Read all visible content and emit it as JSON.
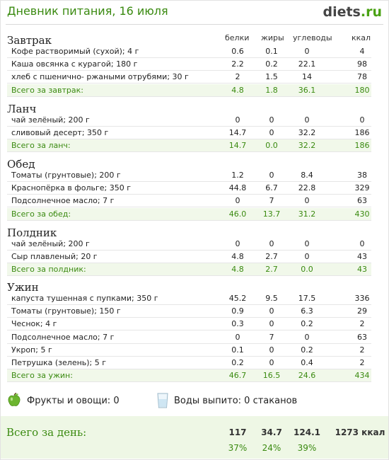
{
  "header": {
    "title": "Дневник питания, 16 июля",
    "logo_main": "diets",
    "logo_suffix": ".ru"
  },
  "columns": {
    "proteins": "белки",
    "fats": "жиры",
    "carbs": "углеводы",
    "kcal": "ккал"
  },
  "meals": [
    {
      "title": "Завтрак",
      "rows": [
        [
          "Кофе растворимый (сухой); 4 г",
          "0.6",
          "0.1",
          "0",
          "4"
        ],
        [
          "Каша овсянка с курагой; 180 г",
          "2.2",
          "0.2",
          "22.1",
          "98"
        ],
        [
          "хлеб с пшенично- ржаными отрубями; 30 г",
          "2",
          "1.5",
          "14",
          "78"
        ]
      ],
      "total": [
        "Всего за завтрак:",
        "4.8",
        "1.8",
        "36.1",
        "180"
      ]
    },
    {
      "title": "Ланч",
      "rows": [
        [
          "чай зелёный; 200 г",
          "0",
          "0",
          "0",
          "0"
        ],
        [
          "сливовый десерт; 350 г",
          "14.7",
          "0",
          "32.2",
          "186"
        ]
      ],
      "total": [
        "Всего за ланч:",
        "14.7",
        "0.0",
        "32.2",
        "186"
      ]
    },
    {
      "title": "Обед",
      "rows": [
        [
          "Томаты (грунтовые); 200 г",
          "1.2",
          "0",
          "8.4",
          "38"
        ],
        [
          "Краснопёрка в фольге; 350 г",
          "44.8",
          "6.7",
          "22.8",
          "329"
        ],
        [
          "Подсолнечное масло; 7 г",
          "0",
          "7",
          "0",
          "63"
        ]
      ],
      "total": [
        "Всего за обед:",
        "46.0",
        "13.7",
        "31.2",
        "430"
      ]
    },
    {
      "title": "Полдник",
      "rows": [
        [
          "чай зелёный; 200 г",
          "0",
          "0",
          "0",
          "0"
        ],
        [
          "Сыр плавленый; 20 г",
          "4.8",
          "2.7",
          "0",
          "43"
        ]
      ],
      "total": [
        "Всего за полдник:",
        "4.8",
        "2.7",
        "0.0",
        "43"
      ]
    },
    {
      "title": "Ужин",
      "rows": [
        [
          "капуста тушенная с пупками; 350 г",
          "45.2",
          "9.5",
          "17.5",
          "336"
        ],
        [
          "Томаты (грунтовые); 150 г",
          "0.9",
          "0",
          "6.3",
          "29"
        ],
        [
          "Чеснок; 4 г",
          "0.3",
          "0",
          "0.2",
          "2"
        ],
        [
          "Подсолнечное масло; 7 г",
          "0",
          "7",
          "0",
          "63"
        ],
        [
          "Укроп; 5 г",
          "0.1",
          "0",
          "0.2",
          "2"
        ],
        [
          "Петрушка (зелень); 5 г",
          "0.2",
          "0",
          "0.4",
          "2"
        ]
      ],
      "total": [
        "Всего за ужин:",
        "46.7",
        "16.5",
        "24.6",
        "434"
      ]
    }
  ],
  "extras": {
    "fruits": "Фрукты и овощи: 0",
    "water": "Воды выпито: 0 стаканов"
  },
  "day_total": {
    "label": "Всего за день:",
    "proteins": "117",
    "fats": "34.7",
    "carbs": "124.1",
    "kcal": "1273 ккал",
    "proteins_pct": "37%",
    "fats_pct": "24%",
    "carbs_pct": "39%"
  }
}
